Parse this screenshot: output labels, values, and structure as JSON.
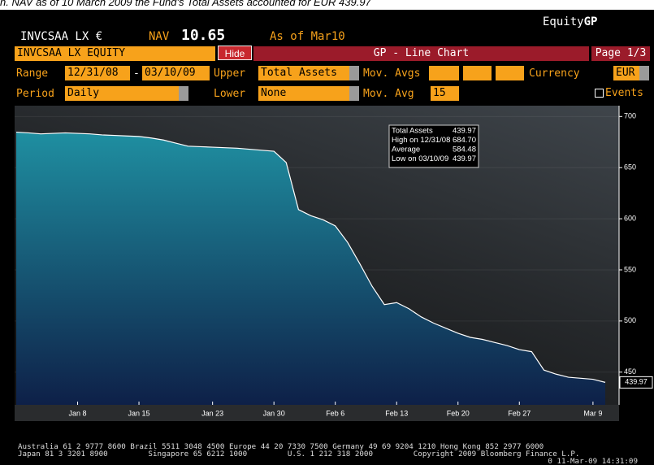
{
  "caption_fragment": "n. NAV as of 10 March 2009 the Fund's Total Assets accounted for EUR 439.97",
  "header": {
    "brand_prefix": "Equity",
    "brand_suffix": "GP",
    "ticker": "INVCSAA LX €",
    "nav_label": "NAV",
    "nav_value": "10.65",
    "as_of": "As of Mar10"
  },
  "toolbar": {
    "security": "INVCSAA LX EQUITY",
    "hide": "Hide",
    "function": "GP - Line Chart",
    "page": "Page 1/3"
  },
  "controls": {
    "range_label": "Range",
    "range_start": "12/31/08",
    "range_sep": "-",
    "range_end": "03/10/09",
    "upper_label": "Upper",
    "upper_value": "Total Assets",
    "mov_avgs_label": "Mov. Avgs",
    "currency_label": "Currency",
    "currency_value": "EUR",
    "period_label": "Period",
    "period_value": "Daily",
    "lower_label": "Lower",
    "lower_value": "None",
    "mov_avg_label": "Mov. Avg",
    "mov_avg_value": "15",
    "events_label": "Events"
  },
  "chart_data": {
    "type": "area",
    "categories": [
      null,
      null,
      null,
      null,
      null,
      "Jan 8",
      null,
      null,
      null,
      null,
      "Jan 15",
      null,
      null,
      null,
      null,
      null,
      "Jan 23",
      null,
      null,
      null,
      null,
      "Jan 30",
      null,
      null,
      null,
      null,
      "Feb 6",
      null,
      null,
      null,
      null,
      "Feb 13",
      null,
      null,
      null,
      null,
      "Feb 20",
      null,
      null,
      null,
      null,
      "Feb 27",
      null,
      null,
      null,
      null,
      null,
      "Mar 9",
      null
    ],
    "values": [
      684.7,
      684,
      683,
      683.5,
      684,
      683.5,
      683,
      682,
      681.5,
      681,
      680.5,
      679,
      677,
      674,
      671,
      670.5,
      670,
      669.5,
      669,
      668,
      667,
      666,
      655,
      609,
      603,
      599,
      593,
      577,
      556,
      534,
      516,
      518,
      512,
      504,
      498,
      493,
      488,
      484,
      482,
      479,
      476,
      472,
      470,
      452,
      448,
      445,
      444,
      443,
      439.97
    ],
    "color": "#ffffff",
    "ylim": [
      418,
      709
    ],
    "yticks": [
      450,
      500,
      550,
      600,
      650,
      700
    ],
    "grid": true,
    "legend_stats": [
      {
        "label": "Total Assets",
        "value": "439.97"
      },
      {
        "label": "High on 12/31/08",
        "value": "684.70"
      },
      {
        "label": "Average",
        "value": "584.48"
      },
      {
        "label": "Low on 03/10/09",
        "value": "439.97"
      }
    ]
  },
  "footer": {
    "lines": [
      "Australia 61 2 9777 8600 Brazil 5511 3048 4500 Europe 44 20 7330 7500 Germany 49 69 9204 1210 Hong Kong 852 2977 6000",
      "Japan 81 3 3201 8900         Singapore 65 6212 1000         U.S. 1 212 318 2000         Copyright 2009 Bloomberg Finance L.P."
    ],
    "timestamp": "0 11-Mar-09 14:31:09"
  }
}
